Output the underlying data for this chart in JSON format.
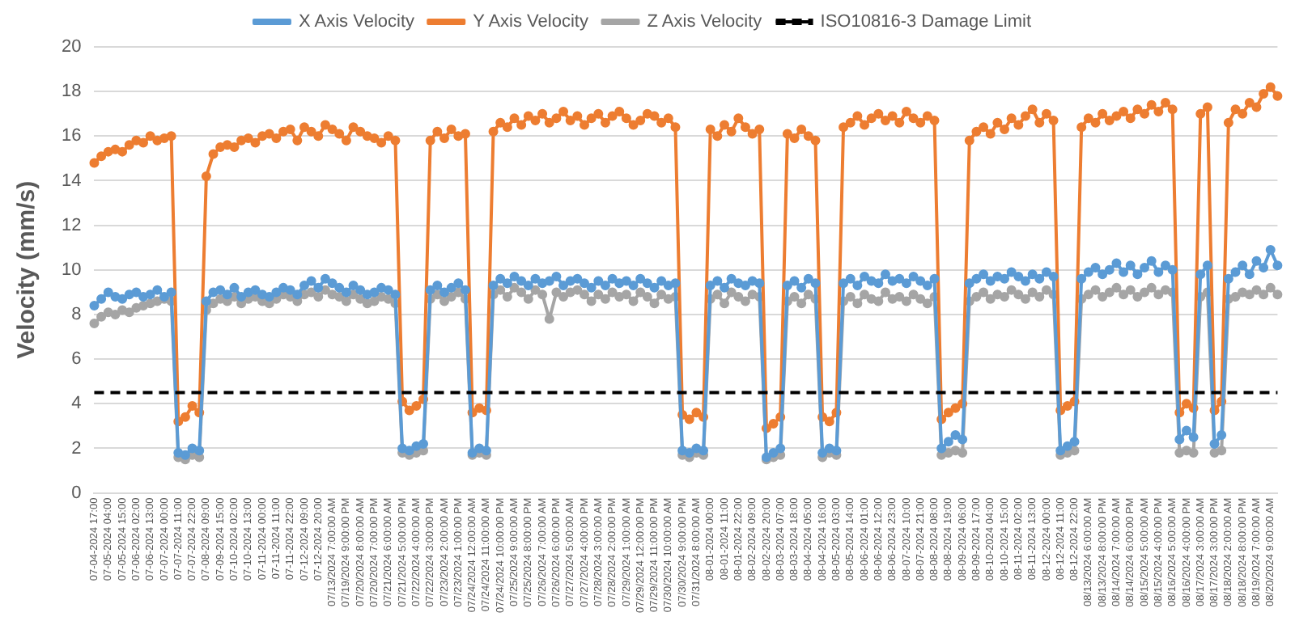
{
  "chart_data": {
    "type": "line",
    "ylabel": "Velocity (mm/s)",
    "ylim": [
      0,
      20
    ],
    "yticks": [
      0,
      2,
      4,
      6,
      8,
      10,
      12,
      14,
      16,
      18,
      20
    ],
    "grid": "y",
    "legend": "top",
    "marker": "circle",
    "categories": [
      "07-04-2024 17:00",
      null,
      "07-05-2024 04:00",
      null,
      "07-05-2024 15:00",
      null,
      "07-06-2024 02:00",
      null,
      "07-06-2024 13:00",
      null,
      "07-07-2024 00:00",
      null,
      "07-07-2024 11:00",
      null,
      "07-07-2024 22:00",
      null,
      "07-08-2024 09:00",
      null,
      "07-09-2024 15:00",
      null,
      "07-10-2024 02:00",
      null,
      "07-10-2024 13:00",
      null,
      "07-11-2024 00:00",
      null,
      "07-11-2024 11:00",
      null,
      "07-11-2024 22:00",
      null,
      "07-12-2024 09:00",
      null,
      "07-12-2024 20:00",
      null,
      "07/13/2024 7:00:00 AM",
      null,
      "07/19/2024 9:00:00 PM",
      null,
      "07/20/2024 8:00:00 AM",
      null,
      "07/20/2024 7:00:00 PM",
      null,
      "07/21/2024 6:00:00 AM",
      null,
      "07/21/2024 5:00:00 PM",
      null,
      "07/22/2024 4:00:00 AM",
      null,
      "07/22/2024 3:00:00 PM",
      null,
      "07/23/2024 2:00:00 AM",
      null,
      "07/23/2024 1:00:00 PM",
      null,
      "07/24/2024 12:00:00 AM",
      null,
      "07/24/2024 11:00:00 AM",
      null,
      "07/24/2024 10:00:00 PM",
      null,
      "07/25/2024 9:00:00 AM",
      null,
      "07/25/2024 8:00:00 PM",
      null,
      "07/26/2024 7:00:00 AM",
      null,
      "07/26/2024 6:00:00 PM",
      null,
      "07/27/2024 5:00:00 AM",
      null,
      "07/27/2024 4:00:00 PM",
      null,
      "07/28/2024 3:00:00 AM",
      null,
      "07/28/2024 2:00:00 PM",
      null,
      "07/29/2024 1:00:00 AM",
      null,
      "07/29/2024 12:00:00 PM",
      null,
      "07/29/2024 11:00:00 PM",
      null,
      "07/30/2024 10:00:00 AM",
      null,
      "07/30/2024 9:00:00 PM",
      null,
      "07/31/2024 8:00:00 AM",
      null,
      "08-01-2024 00:00",
      null,
      "08-01-2024 11:00",
      null,
      "08-01-2024 22:00",
      null,
      "08-02-2024 09:00",
      null,
      "08-02-2024 20:00",
      null,
      "08-03-2024 07:00",
      null,
      "08-03-2024 18:00",
      null,
      "08-04-2024 05:00",
      null,
      "08-04-2024 16:00",
      null,
      "08-05-2024 03:00",
      null,
      "08-05-2024 14:00",
      null,
      "08-06-2024 01:00",
      null,
      "08-06-2024 12:00",
      null,
      "08-06-2024 23:00",
      null,
      "08-07-2024 10:00",
      null,
      "08-07-2024 21:00",
      null,
      "08-08-2024 08:00",
      null,
      "08-08-2024 19:00",
      null,
      "08-09-2024 06:00",
      null,
      "08-09-2024 17:00",
      null,
      "08-10-2024 04:00",
      null,
      "08-10-2024 15:00",
      null,
      "08-11-2024 02:00",
      null,
      "08-11-2024 13:00",
      null,
      "08-12-2024 00:00",
      null,
      "08-12-2024 11:00",
      null,
      "08-12-2024 22:00",
      null,
      "08/13/2024 6:00:00 AM",
      null,
      "08/13/2024 8:00:00 PM",
      null,
      "08/14/2024 7:00:00 AM",
      null,
      "08/14/2024 6:00:00 PM",
      null,
      "08/15/2024 5:00:00 AM",
      null,
      "08/15/2024 4:00:00 PM",
      null,
      "08/16/2024 5:00:00 AM",
      null,
      "08/16/2024 4:00:00 PM",
      null,
      "08/17/2024 3:00:00 AM",
      null,
      "08/17/2024 3:00:00 PM",
      null,
      "08/18/2024 2:00:00 AM",
      null,
      "08/18/2024 8:00:00 PM",
      null,
      "08/19/2024 7:00:00 AM",
      null,
      "08/20/2024 9:00:00 AM",
      null
    ],
    "series": [
      {
        "name": "X Axis Velocity",
        "color": "#5b9bd5",
        "values": [
          8.4,
          8.7,
          9.0,
          8.8,
          8.7,
          8.9,
          9.0,
          8.8,
          8.9,
          9.1,
          8.8,
          9.0,
          1.8,
          1.7,
          2.0,
          1.9,
          8.6,
          9.0,
          9.1,
          8.9,
          9.2,
          8.8,
          9.0,
          9.1,
          8.9,
          8.8,
          9.0,
          9.2,
          9.1,
          8.9,
          9.3,
          9.5,
          9.2,
          9.6,
          9.4,
          9.2,
          9.0,
          9.3,
          9.1,
          8.9,
          9.0,
          9.2,
          9.1,
          8.9,
          2.0,
          1.9,
          2.1,
          2.2,
          9.1,
          9.3,
          9.0,
          9.2,
          9.4,
          9.1,
          1.8,
          2.0,
          1.9,
          9.3,
          9.6,
          9.4,
          9.7,
          9.5,
          9.3,
          9.6,
          9.4,
          9.5,
          9.7,
          9.3,
          9.5,
          9.6,
          9.4,
          9.2,
          9.5,
          9.3,
          9.6,
          9.4,
          9.5,
          9.3,
          9.6,
          9.4,
          9.2,
          9.5,
          9.3,
          9.4,
          1.9,
          1.8,
          2.0,
          1.9,
          9.3,
          9.5,
          9.2,
          9.6,
          9.4,
          9.3,
          9.5,
          9.4,
          1.6,
          1.8,
          2.0,
          9.3,
          9.5,
          9.2,
          9.6,
          9.4,
          1.8,
          2.0,
          1.9,
          9.4,
          9.6,
          9.3,
          9.7,
          9.5,
          9.4,
          9.8,
          9.5,
          9.6,
          9.4,
          9.7,
          9.5,
          9.3,
          9.6,
          2.0,
          2.3,
          2.6,
          2.4,
          9.4,
          9.6,
          9.8,
          9.5,
          9.7,
          9.6,
          9.9,
          9.7,
          9.5,
          9.8,
          9.6,
          9.9,
          9.7,
          1.9,
          2.1,
          2.3,
          9.6,
          9.9,
          10.1,
          9.8,
          10.0,
          10.3,
          9.9,
          10.2,
          9.8,
          10.1,
          10.4,
          9.9,
          10.2,
          10.0,
          2.4,
          2.8,
          2.5,
          9.8,
          10.2,
          2.2,
          2.6,
          9.6,
          9.9,
          10.2,
          9.8,
          10.4,
          10.1,
          10.9,
          10.2
        ]
      },
      {
        "name": "Y Axis Velocity",
        "color": "#ed7d31",
        "values": [
          14.8,
          15.1,
          15.3,
          15.4,
          15.3,
          15.6,
          15.8,
          15.7,
          16.0,
          15.8,
          15.9,
          16.0,
          3.2,
          3.4,
          3.9,
          3.6,
          14.2,
          15.2,
          15.5,
          15.6,
          15.5,
          15.8,
          15.9,
          15.7,
          16.0,
          16.1,
          15.9,
          16.2,
          16.3,
          15.8,
          16.4,
          16.2,
          16.0,
          16.5,
          16.3,
          16.1,
          15.8,
          16.4,
          16.2,
          16.0,
          15.9,
          15.7,
          16.0,
          15.8,
          4.1,
          3.7,
          3.9,
          4.2,
          15.8,
          16.2,
          15.9,
          16.3,
          16.0,
          16.1,
          3.6,
          3.8,
          3.7,
          16.2,
          16.6,
          16.4,
          16.8,
          16.5,
          16.9,
          16.7,
          17.0,
          16.6,
          16.8,
          17.1,
          16.7,
          16.9,
          16.5,
          16.8,
          17.0,
          16.6,
          16.9,
          17.1,
          16.8,
          16.5,
          16.7,
          17.0,
          16.9,
          16.6,
          16.8,
          16.4,
          3.5,
          3.3,
          3.6,
          3.4,
          16.3,
          16.0,
          16.5,
          16.2,
          16.8,
          16.4,
          16.1,
          16.3,
          2.9,
          3.1,
          3.4,
          16.1,
          15.9,
          16.3,
          16.0,
          15.8,
          3.4,
          3.2,
          3.6,
          16.4,
          16.6,
          16.9,
          16.5,
          16.8,
          17.0,
          16.7,
          16.9,
          16.6,
          17.1,
          16.8,
          16.6,
          16.9,
          16.7,
          3.3,
          3.6,
          3.8,
          4.0,
          15.8,
          16.2,
          16.4,
          16.1,
          16.6,
          16.3,
          16.8,
          16.5,
          16.9,
          17.2,
          16.6,
          17.0,
          16.7,
          3.7,
          3.9,
          4.1,
          16.4,
          16.8,
          16.6,
          17.0,
          16.7,
          16.9,
          17.1,
          16.8,
          17.2,
          17.0,
          17.4,
          17.1,
          17.5,
          17.2,
          3.6,
          4.0,
          3.8,
          17.0,
          17.3,
          3.7,
          4.1,
          16.6,
          17.2,
          17.0,
          17.5,
          17.3,
          17.9,
          18.2,
          17.8
        ]
      },
      {
        "name": "Z Axis Velocity",
        "color": "#a5a5a5",
        "values": [
          7.6,
          7.9,
          8.1,
          8.0,
          8.2,
          8.1,
          8.3,
          8.4,
          8.5,
          8.6,
          8.7,
          8.6,
          1.6,
          1.5,
          1.7,
          1.6,
          8.2,
          8.5,
          8.7,
          8.6,
          8.8,
          8.5,
          8.7,
          8.8,
          8.6,
          8.5,
          8.7,
          8.9,
          8.8,
          8.6,
          8.9,
          9.0,
          8.8,
          9.1,
          8.9,
          8.8,
          8.6,
          8.9,
          8.7,
          8.5,
          8.6,
          8.8,
          8.7,
          8.5,
          1.8,
          1.7,
          1.8,
          1.9,
          8.7,
          8.9,
          8.6,
          8.8,
          9.0,
          8.7,
          1.7,
          1.8,
          1.7,
          8.9,
          9.1,
          8.8,
          9.2,
          9.0,
          8.7,
          9.1,
          8.9,
          7.8,
          9.0,
          8.8,
          9.0,
          9.1,
          8.9,
          8.6,
          8.9,
          8.7,
          9.0,
          8.8,
          8.9,
          8.6,
          9.0,
          8.8,
          8.5,
          8.9,
          8.7,
          8.8,
          1.7,
          1.6,
          1.8,
          1.7,
          8.7,
          8.9,
          8.5,
          9.0,
          8.8,
          8.6,
          8.9,
          8.8,
          1.5,
          1.6,
          1.7,
          8.6,
          8.8,
          8.5,
          8.9,
          8.7,
          1.6,
          1.8,
          1.7,
          8.6,
          8.8,
          8.5,
          8.9,
          8.7,
          8.6,
          9.0,
          8.7,
          8.8,
          8.6,
          8.9,
          8.7,
          8.5,
          8.8,
          1.7,
          1.8,
          1.9,
          1.8,
          8.6,
          8.8,
          9.0,
          8.7,
          8.9,
          8.8,
          9.1,
          8.9,
          8.7,
          9.0,
          8.8,
          9.1,
          8.9,
          1.7,
          1.8,
          1.9,
          8.7,
          8.9,
          9.1,
          8.8,
          9.0,
          9.2,
          8.9,
          9.1,
          8.8,
          9.0,
          9.2,
          8.9,
          9.1,
          9.0,
          1.8,
          1.9,
          1.8,
          8.8,
          9.0,
          1.8,
          1.9,
          8.7,
          8.8,
          9.0,
          8.9,
          9.1,
          8.9,
          9.2,
          8.9
        ]
      }
    ],
    "ref_lines": [
      {
        "axis": "y",
        "value": 4.5,
        "label": "ISO10816-3 Damage Limit",
        "color": "#000000",
        "line_style": "dashed"
      }
    ]
  }
}
